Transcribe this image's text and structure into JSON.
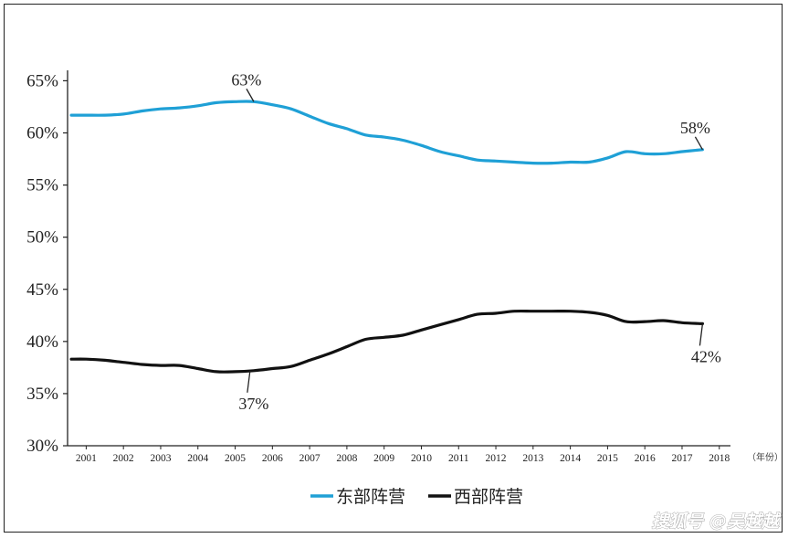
{
  "chart_data": {
    "type": "line",
    "x": [
      2001,
      2002,
      2003,
      2004,
      2005,
      2006,
      2007,
      2008,
      2009,
      2010,
      2011,
      2012,
      2013,
      2014,
      2015,
      2016,
      2017,
      2018
    ],
    "x_tick_labels": [
      "2001",
      "2002",
      "2003",
      "2004",
      "2005",
      "2006",
      "2007",
      "2008",
      "2009",
      "2010",
      "2011",
      "2012",
      "2013",
      "2014",
      "2015",
      "2016",
      "2017",
      "2018"
    ],
    "x_unit_label": "（年份）",
    "y_tick_labels": [
      "30%",
      "35%",
      "40%",
      "45%",
      "50%",
      "55%",
      "60%",
      "65%"
    ],
    "ylim": [
      30,
      66
    ],
    "yticks": [
      30,
      35,
      40,
      45,
      50,
      55,
      60,
      65
    ],
    "xlabel": "",
    "ylabel": "",
    "title": "",
    "series": [
      {
        "name": "东部阵营",
        "color": "#1fa0d6",
        "x": [
          2000.6,
          2001,
          2001.5,
          2002,
          2002.5,
          2003,
          2003.5,
          2004,
          2004.5,
          2005,
          2005.5,
          2006,
          2006.5,
          2007,
          2007.5,
          2008,
          2008.5,
          2009,
          2009.5,
          2010,
          2010.5,
          2011,
          2011.5,
          2012,
          2012.5,
          2013,
          2013.5,
          2014,
          2014.5,
          2015,
          2015.5,
          2016,
          2016.5,
          2017,
          2017.55
        ],
        "values": [
          61.7,
          61.7,
          61.7,
          61.8,
          62.1,
          62.3,
          62.4,
          62.6,
          62.9,
          63.0,
          63.0,
          62.7,
          62.3,
          61.6,
          60.9,
          60.4,
          59.8,
          59.6,
          59.3,
          58.8,
          58.2,
          57.8,
          57.4,
          57.3,
          57.2,
          57.1,
          57.1,
          57.2,
          57.2,
          57.6,
          58.2,
          58.0,
          58.0,
          58.2,
          58.4
        ]
      },
      {
        "name": "西部阵营",
        "color": "#111111",
        "x": [
          2000.6,
          2001,
          2001.5,
          2002,
          2002.5,
          2003,
          2003.5,
          2004,
          2004.5,
          2005,
          2005.5,
          2006,
          2006.5,
          2007,
          2007.5,
          2008,
          2008.5,
          2009,
          2009.5,
          2010,
          2010.5,
          2011,
          2011.5,
          2012,
          2012.5,
          2013,
          2013.5,
          2014,
          2014.5,
          2015,
          2015.5,
          2016,
          2016.5,
          2017,
          2017.55
        ],
        "values": [
          38.3,
          38.3,
          38.2,
          38.0,
          37.8,
          37.7,
          37.7,
          37.4,
          37.1,
          37.1,
          37.2,
          37.4,
          37.6,
          38.2,
          38.8,
          39.5,
          40.2,
          40.4,
          40.6,
          41.1,
          41.6,
          42.1,
          42.6,
          42.7,
          42.9,
          42.9,
          42.9,
          42.9,
          42.8,
          42.5,
          41.9,
          41.9,
          42.0,
          41.8,
          41.7
        ]
      }
    ],
    "annotations": [
      {
        "text": "63%",
        "series": 0,
        "x": 2005.5,
        "y": 63.0,
        "anchor": "above"
      },
      {
        "text": "37%",
        "series": 1,
        "x": 2005.4,
        "y": 37.2,
        "anchor": "below"
      },
      {
        "text": "58%",
        "series": 0,
        "x": 2017.55,
        "y": 58.4,
        "anchor": "above"
      },
      {
        "text": "42%",
        "series": 1,
        "x": 2017.55,
        "y": 41.7,
        "anchor": "below"
      }
    ],
    "legend": {
      "position": "bottom-center",
      "items": [
        "东部阵营",
        "西部阵营"
      ]
    },
    "grid": false
  },
  "watermark": {
    "text": "搜狐号 @吴越越"
  }
}
